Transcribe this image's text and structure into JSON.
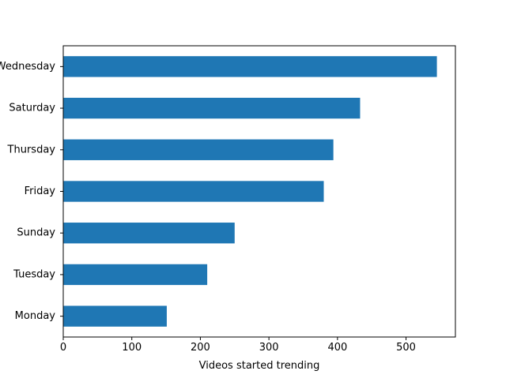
{
  "chart_data": {
    "type": "bar",
    "orientation": "horizontal",
    "categories": [
      "Monday",
      "Tuesday",
      "Sunday",
      "Friday",
      "Thursday",
      "Saturday",
      "Wednesday"
    ],
    "values": [
      151,
      210,
      250,
      380,
      394,
      433,
      545
    ],
    "xlabel": "Videos started trending",
    "ylabel": "",
    "xlim": [
      0,
      572
    ],
    "xticks": [
      0,
      100,
      200,
      300,
      400,
      500
    ],
    "grid": false,
    "legend": "none",
    "bar_color": "#1f77b4"
  }
}
